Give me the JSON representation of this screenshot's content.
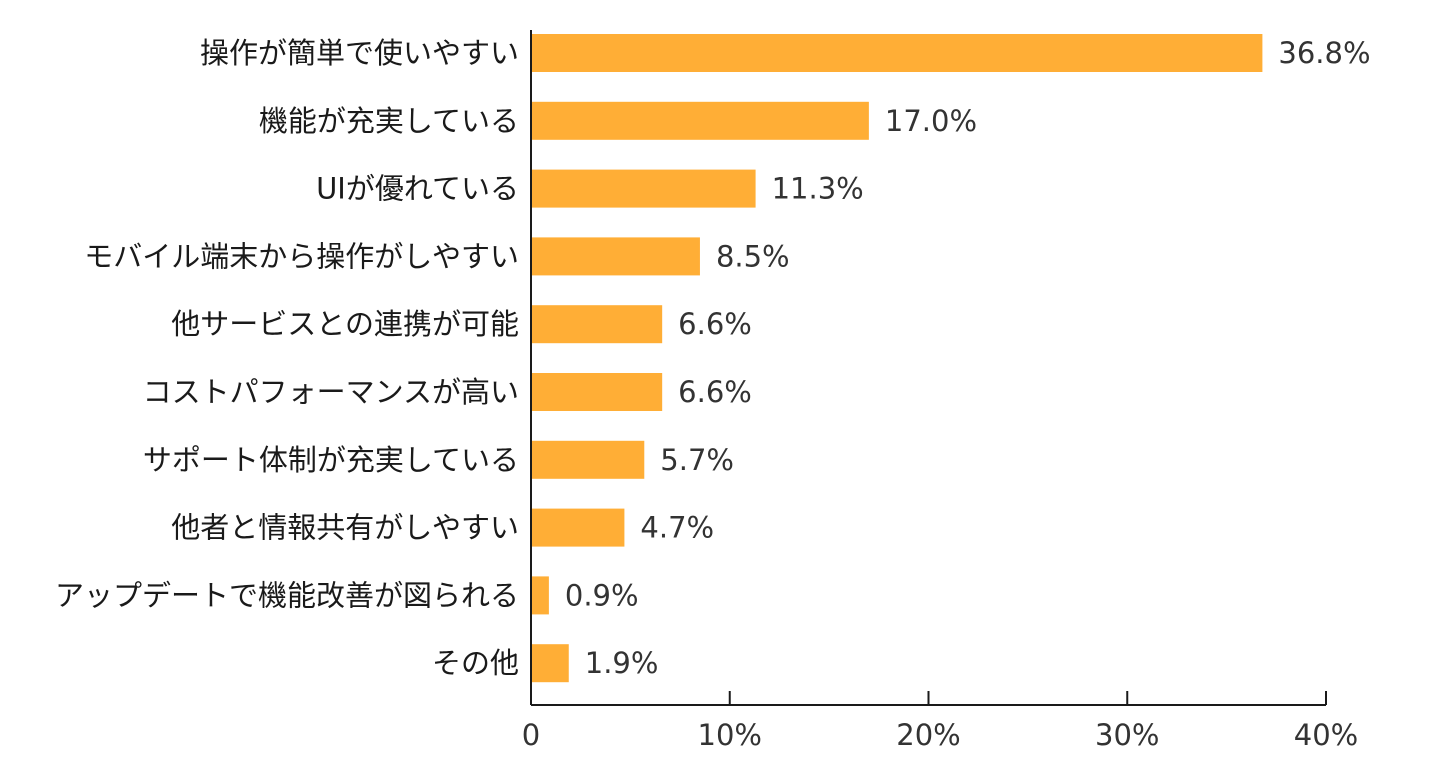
{
  "chart_data": {
    "type": "bar",
    "orientation": "horizontal",
    "categories": [
      "操作が簡単で使いやすい",
      "機能が充実している",
      "UIが優れている",
      "モバイル端末から操作がしやすい",
      "他サービスとの連携が可能",
      "コストパフォーマンスが高い",
      "サポート体制が充実している",
      "他者と情報共有がしやすい",
      "アップデートで機能改善が図られる",
      "その他"
    ],
    "values": [
      36.8,
      17.0,
      11.3,
      8.5,
      6.6,
      6.6,
      5.7,
      4.7,
      0.9,
      1.9
    ],
    "value_labels": [
      "36.8%",
      "17.0%",
      "11.3%",
      "8.5%",
      "6.6%",
      "6.6%",
      "5.7%",
      "4.7%",
      "0.9%",
      "1.9%"
    ],
    "x_ticks": [
      "0",
      "10%",
      "20%",
      "30%",
      "40%"
    ],
    "xlim": [
      0,
      40
    ],
    "grid": false,
    "bar_color": "#FFAE36",
    "axis_color": "#1a1a1a"
  }
}
